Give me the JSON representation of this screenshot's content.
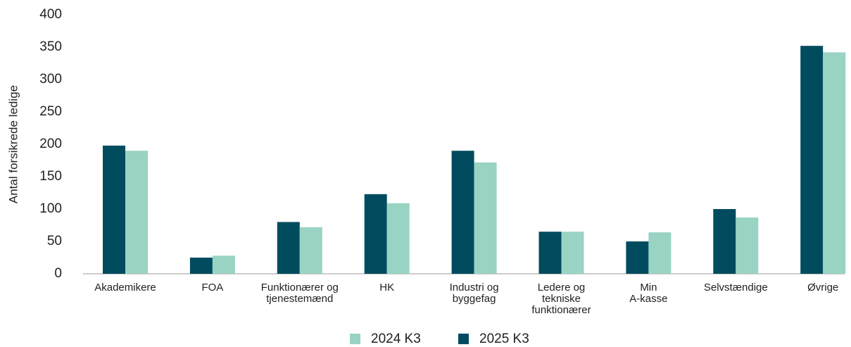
{
  "chart_data": {
    "type": "bar",
    "y_label": "Antal forsikrede ledige",
    "categories": [
      "Akademikere",
      "FOA",
      "Funktionærer og\ntjenestemænd",
      "HK",
      "Industri og\nbyggefag",
      "Ledere og\ntekniske\nfunktionærer",
      "Min\nA-kasse",
      "Selvstændige",
      "Øvrige"
    ],
    "series": [
      {
        "name": "2025 K3",
        "color": "#004c5e",
        "values": [
          198,
          25,
          80,
          123,
          190,
          65,
          50,
          100,
          352
        ]
      },
      {
        "name": "2024 K3",
        "color": "#99d3c3",
        "values": [
          190,
          28,
          72,
          109,
          172,
          65,
          64,
          87,
          342
        ]
      }
    ],
    "legend_order": [
      1,
      0
    ],
    "ylim": [
      0,
      400
    ],
    "yticks": [
      0,
      50,
      100,
      150,
      200,
      250,
      300,
      350,
      400
    ],
    "grid": false
  }
}
